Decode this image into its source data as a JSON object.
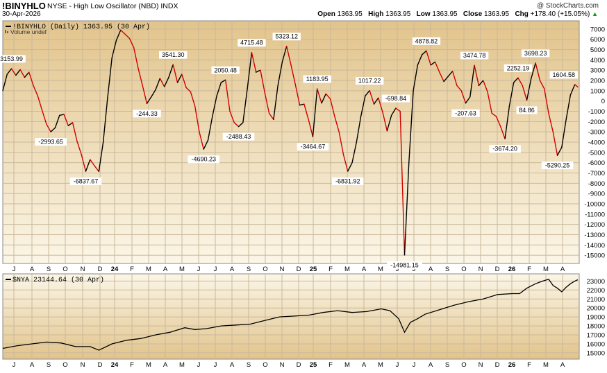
{
  "header": {
    "symbol": "!BINYHLO",
    "description": "NYSE - High Low Oscillator (NBD)  INDX",
    "copyright": "@ StockCharts.com",
    "date": "30-Apr-2026",
    "open_label": "Open",
    "open": "1363.95",
    "high_label": "High",
    "high": "1363.95",
    "low_label": "Low",
    "low": "1363.95",
    "close_label": "Close",
    "close": "1363.95",
    "chg_label": "Chg",
    "chg": "+178.40 (+15.05%)",
    "chg_arrow": "▲"
  },
  "chart_data": [
    {
      "type": "line",
      "legend": "!BINYHLO (Daily) 1363.95 (30 Apr)",
      "volume_note": "Volume undef",
      "ylim": [
        -15800,
        7800
      ],
      "yticks": [
        7000,
        6000,
        5000,
        4000,
        3000,
        2000,
        1000,
        0,
        -1000,
        -2000,
        -3000,
        -4000,
        -5000,
        -6000,
        -7000,
        -8000,
        -9000,
        -10000,
        -11000,
        -12000,
        -13000,
        -14000,
        -15000
      ],
      "x_months": [
        "J",
        "A",
        "S",
        "O",
        "N",
        "D",
        "24",
        "F",
        "M",
        "A",
        "M",
        "J",
        "J",
        "A",
        "S",
        "O",
        "N",
        "D",
        "25",
        "F",
        "M",
        "A",
        "M",
        "J",
        "J",
        "A",
        "S",
        "O",
        "N",
        "D",
        "26",
        "F",
        "M",
        "A"
      ],
      "colors": {
        "rising": "#000000",
        "falling": "#d10000"
      },
      "points": [
        [
          0,
          1000
        ],
        [
          3,
          2600
        ],
        [
          6,
          3150
        ],
        [
          9,
          2500
        ],
        [
          12,
          3050
        ],
        [
          15,
          2300
        ],
        [
          18,
          2800
        ],
        [
          21,
          1500
        ],
        [
          24,
          500
        ],
        [
          27,
          -900
        ],
        [
          30,
          -2250
        ],
        [
          33,
          -2993.65
        ],
        [
          36,
          -2600
        ],
        [
          39,
          -1400
        ],
        [
          42,
          -1300
        ],
        [
          45,
          -2400
        ],
        [
          48,
          -2100
        ],
        [
          51,
          -3900
        ],
        [
          54,
          -5200
        ],
        [
          57,
          -6837.67
        ],
        [
          60,
          -5700
        ],
        [
          63,
          -6300
        ],
        [
          66,
          -6850
        ],
        [
          69,
          -4000
        ],
        [
          72,
          300
        ],
        [
          75,
          4200
        ],
        [
          78,
          5900
        ],
        [
          81,
          6900
        ],
        [
          84,
          6500
        ],
        [
          87,
          6100
        ],
        [
          90,
          5200
        ],
        [
          93,
          3200
        ],
        [
          96,
          1500
        ],
        [
          99,
          -244.33
        ],
        [
          102,
          400
        ],
        [
          105,
          1100
        ],
        [
          108,
          2200
        ],
        [
          111,
          1400
        ],
        [
          114,
          2300
        ],
        [
          117,
          3541.3
        ],
        [
          120,
          1800
        ],
        [
          123,
          2600
        ],
        [
          126,
          1300
        ],
        [
          129,
          900
        ],
        [
          132,
          -500
        ],
        [
          135,
          -3000
        ],
        [
          138,
          -4690.23
        ],
        [
          141,
          -3800
        ],
        [
          144,
          -1500
        ],
        [
          147,
          500
        ],
        [
          150,
          1800
        ],
        [
          153,
          2050.48
        ],
        [
          156,
          -1000
        ],
        [
          159,
          -2100
        ],
        [
          162,
          -2488.43
        ],
        [
          165,
          -2100
        ],
        [
          168,
          1200
        ],
        [
          171,
          4715.48
        ],
        [
          174,
          2800
        ],
        [
          177,
          3000
        ],
        [
          180,
          800
        ],
        [
          183,
          -1200
        ],
        [
          186,
          -1800
        ],
        [
          189,
          1500
        ],
        [
          192,
          3800
        ],
        [
          195,
          5323.12
        ],
        [
          198,
          3500
        ],
        [
          201,
          1600
        ],
        [
          204,
          -400
        ],
        [
          207,
          -300
        ],
        [
          210,
          -1800
        ],
        [
          213,
          -3464.67
        ],
        [
          216,
          1183.95
        ],
        [
          219,
          -200
        ],
        [
          222,
          700
        ],
        [
          225,
          200
        ],
        [
          228,
          -1500
        ],
        [
          231,
          -3000
        ],
        [
          234,
          -5200
        ],
        [
          237,
          -6831.92
        ],
        [
          240,
          -6000
        ],
        [
          243,
          -4000
        ],
        [
          246,
          -1500
        ],
        [
          249,
          500
        ],
        [
          252,
          1017.22
        ],
        [
          255,
          -300
        ],
        [
          258,
          300
        ],
        [
          261,
          -1100
        ],
        [
          264,
          -2900
        ],
        [
          267,
          -1400
        ],
        [
          270,
          -698.84
        ],
        [
          273,
          -1000
        ],
        [
          276,
          -14981.15
        ],
        [
          279,
          -6000
        ],
        [
          282,
          1000
        ],
        [
          285,
          3500
        ],
        [
          288,
          4500
        ],
        [
          291,
          4878.82
        ],
        [
          294,
          3500
        ],
        [
          297,
          3800
        ],
        [
          300,
          2800
        ],
        [
          303,
          1900
        ],
        [
          306,
          2400
        ],
        [
          309,
          2900
        ],
        [
          312,
          1500
        ],
        [
          315,
          1000
        ],
        [
          318,
          -207.63
        ],
        [
          321,
          400
        ],
        [
          324,
          3474.78
        ],
        [
          327,
          1500
        ],
        [
          330,
          2000
        ],
        [
          333,
          900
        ],
        [
          336,
          -1200
        ],
        [
          339,
          -1500
        ],
        [
          342,
          -2500
        ],
        [
          345,
          -3674.2
        ],
        [
          348,
          -500
        ],
        [
          351,
          1800
        ],
        [
          354,
          2252.19
        ],
        [
          357,
          1500
        ],
        [
          360,
          84.86
        ],
        [
          363,
          2200
        ],
        [
          366,
          3698.23
        ],
        [
          369,
          2000
        ],
        [
          372,
          1200
        ],
        [
          375,
          -1200
        ],
        [
          378,
          -3000
        ],
        [
          381,
          -5290.25
        ],
        [
          384,
          -4500
        ],
        [
          387,
          -1800
        ],
        [
          390,
          600
        ],
        [
          393,
          1604.58
        ],
        [
          395,
          1363.95
        ]
      ],
      "annotations": [
        {
          "i": 6,
          "label": "3153.99",
          "pos": "above"
        },
        {
          "i": 33,
          "label": "-2993.65",
          "pos": "below"
        },
        {
          "i": 57,
          "label": "-6837.67",
          "pos": "below"
        },
        {
          "i": 81,
          "label": "7016.01",
          "pos": "none"
        },
        {
          "i": 99,
          "label": "-244.33",
          "pos": "below"
        },
        {
          "i": 117,
          "label": "3541.30",
          "pos": "above"
        },
        {
          "i": 138,
          "label": "-4690.23",
          "pos": "below"
        },
        {
          "i": 153,
          "label": "2050.48",
          "pos": "above"
        },
        {
          "i": 162,
          "label": "-2488.43",
          "pos": "below"
        },
        {
          "i": 171,
          "label": "4715.48",
          "pos": "above"
        },
        {
          "i": 195,
          "label": "5323.12",
          "pos": "above"
        },
        {
          "i": 213,
          "label": "-3464.67",
          "pos": "below"
        },
        {
          "i": 216,
          "label": "1183.95",
          "pos": "above"
        },
        {
          "i": 237,
          "label": "-6831.92",
          "pos": "below"
        },
        {
          "i": 252,
          "label": "1017.22",
          "pos": "above"
        },
        {
          "i": 270,
          "label": "-698.84",
          "pos": "above"
        },
        {
          "i": 276,
          "label": "-14981.15",
          "pos": "below"
        },
        {
          "i": 291,
          "label": "4878.82",
          "pos": "above"
        },
        {
          "i": 318,
          "label": "-207.63",
          "pos": "below"
        },
        {
          "i": 324,
          "label": "3474.78",
          "pos": "above"
        },
        {
          "i": 345,
          "label": "-3674.20",
          "pos": "below"
        },
        {
          "i": 354,
          "label": "2252.19",
          "pos": "above"
        },
        {
          "i": 360,
          "label": "84.86",
          "pos": "below"
        },
        {
          "i": 366,
          "label": "3698.23",
          "pos": "above"
        },
        {
          "i": 381,
          "label": "-5290.25",
          "pos": "below"
        },
        {
          "i": 393,
          "label": "1604.58",
          "pos": "above"
        }
      ]
    },
    {
      "type": "line",
      "legend": "$NYA 23144.64 (30 Apr)",
      "ylim": [
        14300,
        23800
      ],
      "yticks": [
        23000,
        22000,
        21000,
        20000,
        19000,
        18000,
        17000,
        16000,
        15000
      ],
      "x_months": [
        "J",
        "A",
        "S",
        "O",
        "N",
        "D",
        "24",
        "F",
        "M",
        "A",
        "M",
        "J",
        "J",
        "A",
        "S",
        "O",
        "N",
        "D",
        "25",
        "F",
        "M",
        "A",
        "M",
        "J",
        "J",
        "A",
        "S",
        "O",
        "N",
        "D",
        "26",
        "F",
        "M",
        "A"
      ],
      "color": "#000000",
      "points": [
        [
          0,
          15500
        ],
        [
          10,
          15800
        ],
        [
          20,
          16000
        ],
        [
          30,
          16200
        ],
        [
          40,
          16100
        ],
        [
          50,
          15700
        ],
        [
          60,
          15700
        ],
        [
          66,
          15300
        ],
        [
          75,
          16000
        ],
        [
          85,
          16400
        ],
        [
          95,
          16600
        ],
        [
          105,
          17000
        ],
        [
          115,
          17300
        ],
        [
          125,
          17800
        ],
        [
          132,
          17600
        ],
        [
          140,
          17700
        ],
        [
          150,
          18000
        ],
        [
          160,
          18100
        ],
        [
          170,
          18200
        ],
        [
          180,
          18600
        ],
        [
          190,
          19000
        ],
        [
          200,
          19100
        ],
        [
          210,
          19200
        ],
        [
          220,
          19500
        ],
        [
          230,
          19700
        ],
        [
          240,
          19500
        ],
        [
          250,
          19600
        ],
        [
          260,
          19900
        ],
        [
          266,
          19700
        ],
        [
          272,
          18800
        ],
        [
          276,
          17300
        ],
        [
          280,
          18400
        ],
        [
          285,
          18800
        ],
        [
          290,
          19300
        ],
        [
          300,
          19800
        ],
        [
          310,
          20300
        ],
        [
          320,
          20700
        ],
        [
          330,
          21000
        ],
        [
          340,
          21500
        ],
        [
          350,
          21600
        ],
        [
          355,
          21600
        ],
        [
          360,
          22200
        ],
        [
          366,
          22700
        ],
        [
          371,
          23000
        ],
        [
          375,
          23200
        ],
        [
          378,
          22500
        ],
        [
          381,
          22200
        ],
        [
          384,
          21800
        ],
        [
          387,
          22300
        ],
        [
          390,
          22700
        ],
        [
          393,
          23000
        ],
        [
          395,
          23144.64
        ]
      ]
    }
  ]
}
